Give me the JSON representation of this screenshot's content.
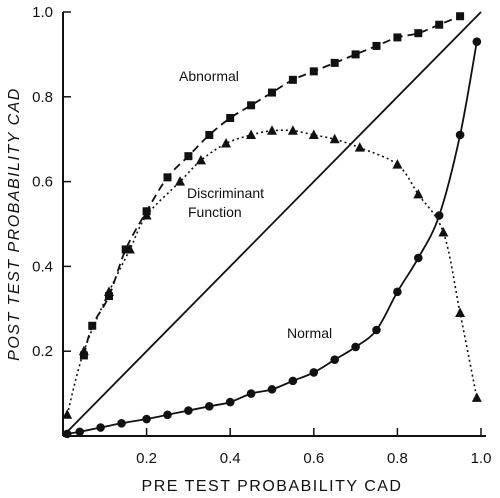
{
  "chart_data": {
    "type": "line",
    "xlabel": "PRE TEST PROBABILITY CAD",
    "ylabel": "POST TEST PROBABILITY CAD",
    "xlim": [
      0,
      1.0
    ],
    "ylim": [
      0,
      1.0
    ],
    "x_ticks": [
      "0.2",
      "0.4",
      "0.6",
      "0.8",
      "1.0"
    ],
    "y_ticks": [
      "0.2",
      "0.4",
      "0.6",
      "0.8",
      "1.0"
    ],
    "grid": false,
    "annotations": [
      "Abnormal",
      "Discriminant",
      "Function",
      "Normal"
    ],
    "series": [
      {
        "name": "Abnormal",
        "marker": "square",
        "line": "dashed",
        "x": [
          0.05,
          0.07,
          0.11,
          0.15,
          0.2,
          0.25,
          0.3,
          0.35,
          0.4,
          0.45,
          0.5,
          0.55,
          0.6,
          0.65,
          0.7,
          0.75,
          0.8,
          0.85,
          0.9,
          0.95
        ],
        "y": [
          0.19,
          0.26,
          0.33,
          0.44,
          0.53,
          0.61,
          0.66,
          0.71,
          0.75,
          0.78,
          0.81,
          0.84,
          0.86,
          0.88,
          0.9,
          0.92,
          0.94,
          0.95,
          0.97,
          0.99
        ]
      },
      {
        "name": "Discriminant Function",
        "marker": "triangle",
        "line": "dotted",
        "x": [
          0.01,
          0.05,
          0.11,
          0.16,
          0.2,
          0.28,
          0.33,
          0.39,
          0.45,
          0.5,
          0.55,
          0.6,
          0.65,
          0.71,
          0.8,
          0.85,
          0.91,
          0.95,
          0.99
        ],
        "y": [
          0.05,
          0.2,
          0.34,
          0.44,
          0.52,
          0.6,
          0.65,
          0.69,
          0.71,
          0.72,
          0.72,
          0.71,
          0.7,
          0.68,
          0.64,
          0.57,
          0.48,
          0.29,
          0.09
        ]
      },
      {
        "name": "Normal",
        "marker": "circle",
        "line": "solid",
        "x": [
          0.01,
          0.04,
          0.09,
          0.14,
          0.2,
          0.25,
          0.3,
          0.35,
          0.4,
          0.45,
          0.5,
          0.55,
          0.6,
          0.65,
          0.7,
          0.75,
          0.8,
          0.85,
          0.9,
          0.95,
          0.99
        ],
        "y": [
          0.005,
          0.01,
          0.02,
          0.03,
          0.04,
          0.05,
          0.06,
          0.07,
          0.08,
          0.1,
          0.11,
          0.13,
          0.15,
          0.18,
          0.21,
          0.25,
          0.34,
          0.42,
          0.52,
          0.71,
          0.93
        ]
      },
      {
        "name": "",
        "marker": "none",
        "line": "solid",
        "x": [
          0,
          1.0
        ],
        "y": [
          0,
          1.0
        ]
      }
    ]
  }
}
